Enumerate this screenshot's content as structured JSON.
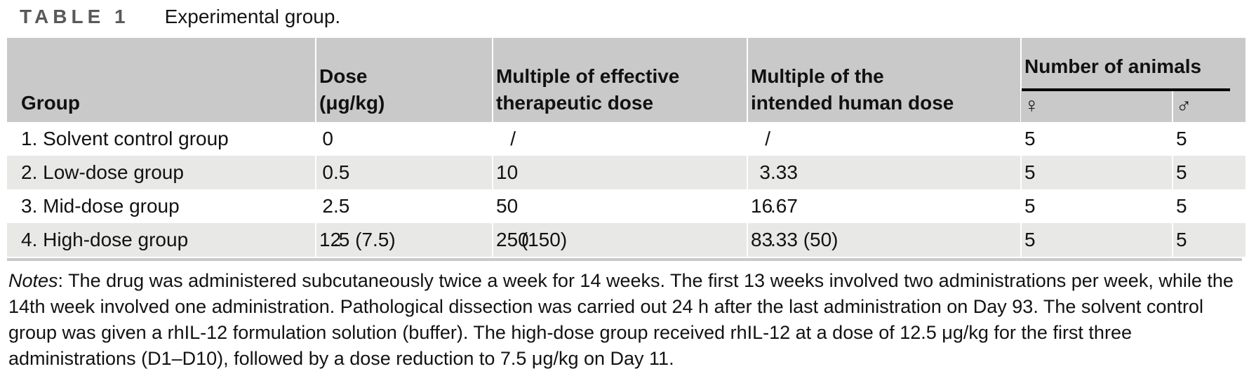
{
  "title": {
    "label": "TABLE 1",
    "caption": "Experimental group."
  },
  "table": {
    "columns": [
      {
        "id": "group",
        "numeric": false,
        "header_lines": [
          "Group"
        ]
      },
      {
        "id": "dose",
        "numeric": true,
        "header_lines": [
          "Dose",
          "(μg/kg)"
        ]
      },
      {
        "id": "multiple_effective",
        "numeric": true,
        "header_lines": [
          "Multiple of effective",
          "therapeutic dose"
        ]
      },
      {
        "id": "multiple_human",
        "numeric": true,
        "header_lines": [
          "Multiple of the",
          "intended human dose"
        ]
      }
    ],
    "animals_group": {
      "label": "Number of animals",
      "columns": [
        {
          "id": "female",
          "symbol": "♀"
        },
        {
          "id": "male",
          "symbol": "♂"
        }
      ]
    },
    "rows": [
      {
        "group": "1. Solvent control group",
        "dose": "0",
        "multiple_effective": "/",
        "multiple_human": "/",
        "female": "5",
        "male": "5"
      },
      {
        "group": "2. Low-dose group",
        "dose": "0.5",
        "multiple_effective": "10",
        "multiple_human": "3.33",
        "female": "5",
        "male": "5"
      },
      {
        "group": "3. Mid-dose group",
        "dose": "2.5",
        "multiple_effective": "50",
        "multiple_human": "16.67",
        "female": "5",
        "male": "5"
      },
      {
        "group": "4. High-dose group",
        "dose": "12.5 (7.5)",
        "multiple_effective": "250 (150)",
        "multiple_human": "83.33 (50)",
        "female": "5",
        "male": "5"
      }
    ]
  },
  "notes": {
    "label": "Notes",
    "separator": ": ",
    "text": "The drug was administered subcutaneously twice a week for 14 weeks. The first 13 weeks involved two administrations per week, while the 14th week involved one administration. Pathological dissection was carried out 24 h after the last administration on Day 93. The solvent control group was given a rhIL-12 formulation solution (buffer). The high-dose group received rhIL-12 at a dose of 12.5 μg/kg for the first three administrations (D1–D10), followed by a dose reduction to 7.5 μg/kg on Day 11."
  }
}
